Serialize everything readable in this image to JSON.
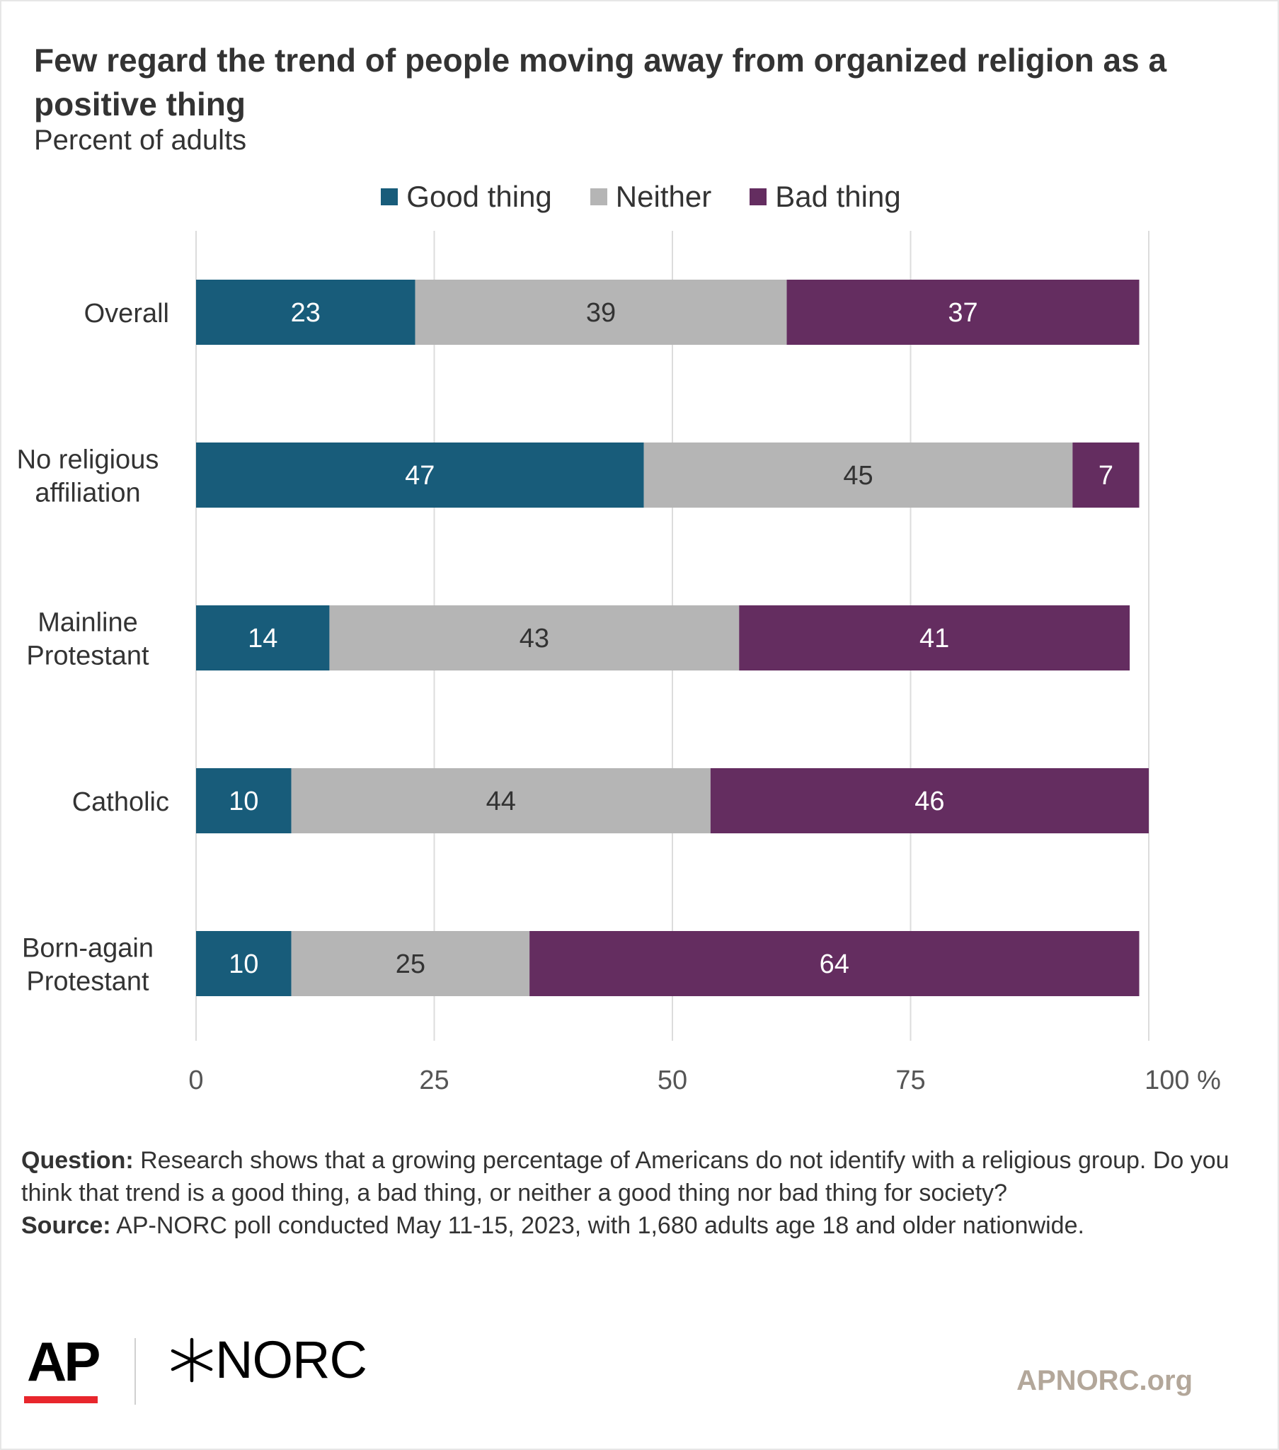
{
  "title": "Few regard the trend of people moving away from organized religion as a positive thing",
  "subtitle": "Percent of adults",
  "legend": [
    {
      "label": "Good thing",
      "color": "#185c7a"
    },
    {
      "label": "Neither",
      "color": "#b5b5b5"
    },
    {
      "label": "Bad thing",
      "color": "#642d60"
    }
  ],
  "chart_data": {
    "type": "bar",
    "orientation": "horizontal",
    "stacked": true,
    "categories": [
      "Overall",
      "No religious affiliation",
      "Mainline Protestant",
      "Catholic",
      "Born-again Protestant"
    ],
    "category_lines": [
      [
        "Overall"
      ],
      [
        "No religious",
        "affiliation"
      ],
      [
        "Mainline",
        "Protestant"
      ],
      [
        "Catholic"
      ],
      [
        "Born-again",
        "Protestant"
      ]
    ],
    "series": [
      {
        "name": "Good thing",
        "color": "#185c7a",
        "label_color": "#ffffff",
        "values": [
          23,
          47,
          14,
          10,
          10
        ]
      },
      {
        "name": "Neither",
        "color": "#b5b5b5",
        "label_color": "#333333",
        "values": [
          39,
          45,
          43,
          44,
          25
        ]
      },
      {
        "name": "Bad thing",
        "color": "#642d60",
        "label_color": "#ffffff",
        "values": [
          37,
          7,
          41,
          46,
          64
        ]
      }
    ],
    "xlim": [
      0,
      100
    ],
    "xticks": [
      0,
      25,
      50,
      75,
      100
    ],
    "xtick_labels": [
      "0",
      "25",
      "50",
      "75",
      "100 %"
    ],
    "grid": true,
    "legend_position": "top-center"
  },
  "notes": {
    "question_label": "Question:",
    "question_text": "Research shows that a growing percentage of Americans do not identify with a religious group. Do you think that trend is a good thing, a bad thing, or neither a good thing nor bad thing for society?",
    "source_label": "Source:",
    "source_text": "AP-NORC poll conducted May 11-15, 2023, with 1,680 adults age 18 and older nationwide."
  },
  "branding": {
    "ap": "AP",
    "norc": "NORC",
    "site": "APNORC.org"
  }
}
